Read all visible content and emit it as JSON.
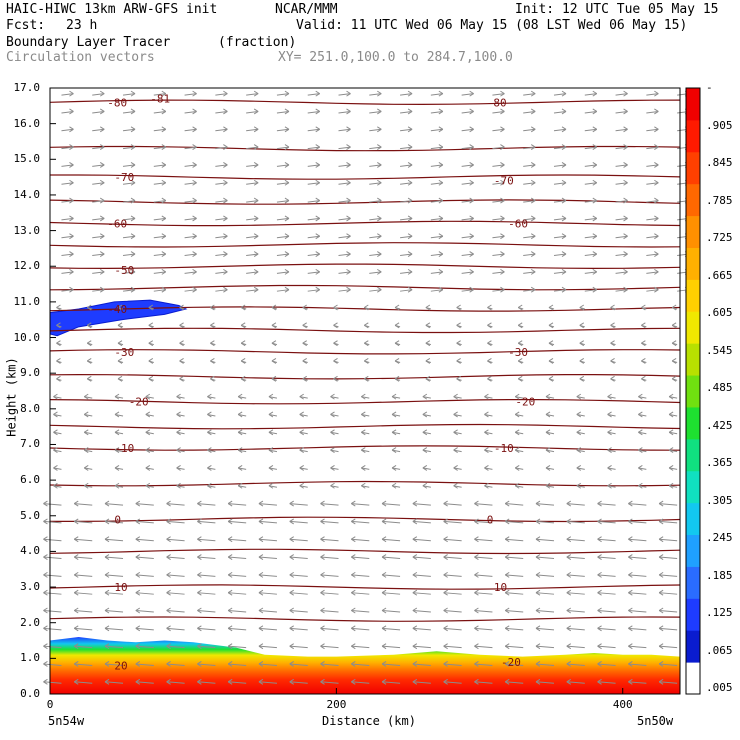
{
  "header": {
    "line1_left": "HAIC-HIWC 13km ARW-GFS init",
    "line1_mid": "NCAR/MMM",
    "line1_right": "Init: 12 UTC Tue 05 May 15",
    "fcst_label": "Fcst:",
    "fcst_value": "23 h",
    "valid": "Valid: 11 UTC Wed 06 May 15 (08 LST Wed 06 May 15)",
    "field_name": "Boundary Layer Tracer",
    "field_units": "(fraction)",
    "vector_label": "Circulation vectors",
    "xy_label": "XY= 251.0,100.0 to 284.7,100.0"
  },
  "chart_data": {
    "type": "heatmap",
    "ylabel": "Height (km)",
    "xlabel": "Distance (km)",
    "ylim": [
      0,
      17
    ],
    "xlim": [
      0,
      440
    ],
    "yticks": [
      "0.0",
      "1.0",
      "2.0",
      "3.0",
      "4.0",
      "5.0",
      "6.0",
      "7.0",
      "8.0",
      "9.0",
      "10.0",
      "11.0",
      "12.0",
      "13.0",
      "14.0",
      "15.0",
      "16.0",
      "17.0"
    ],
    "xticks": [
      "0",
      "200",
      "400"
    ],
    "x_end_labels": [
      "5n54w",
      "5n50w"
    ],
    "colorbar_ticks": [
      ".005",
      ".065",
      ".125",
      ".185",
      ".245",
      ".305",
      ".365",
      ".425",
      ".485",
      ".545",
      ".605",
      ".665",
      ".725",
      ".785",
      ".845",
      ".905",
      "-"
    ],
    "colorbar_colors": [
      "#ffffff",
      "#0a1ccf",
      "#1e3cff",
      "#2a6cff",
      "#1fa0ff",
      "#12c8f0",
      "#10e0c0",
      "#10e080",
      "#1ee030",
      "#70e010",
      "#b8e000",
      "#f0e800",
      "#ffd000",
      "#ffb000",
      "#ff9000",
      "#ff6800",
      "#ff4000",
      "#ff1a00",
      "#f00000"
    ],
    "contour_labels": [
      {
        "text": "-81",
        "x": 70,
        "y": 16.7
      },
      {
        "text": "-80",
        "x": 40,
        "y": 16.6
      },
      {
        "text": "-80",
        "x": 305,
        "y": 16.6
      },
      {
        "text": "-70",
        "x": 45,
        "y": 14.5
      },
      {
        "text": "-70",
        "x": 310,
        "y": 14.4
      },
      {
        "text": "-60",
        "x": 40,
        "y": 13.2
      },
      {
        "text": "-60",
        "x": 320,
        "y": 13.2
      },
      {
        "text": "-50",
        "x": 45,
        "y": 11.9
      },
      {
        "text": "-40",
        "x": 40,
        "y": 10.8
      },
      {
        "text": "-30",
        "x": 45,
        "y": 9.6
      },
      {
        "text": "-30",
        "x": 320,
        "y": 9.6
      },
      {
        "text": "-20",
        "x": 55,
        "y": 8.2
      },
      {
        "text": "-20",
        "x": 325,
        "y": 8.2
      },
      {
        "text": "-10",
        "x": 45,
        "y": 6.9
      },
      {
        "text": "-10",
        "x": 310,
        "y": 6.9
      },
      {
        "text": "0",
        "x": 45,
        "y": 4.9
      },
      {
        "text": "0",
        "x": 305,
        "y": 4.9
      },
      {
        "text": "10",
        "x": 45,
        "y": 3.0
      },
      {
        "text": "10",
        "x": 310,
        "y": 3.0
      },
      {
        "text": "20",
        "x": 45,
        "y": 0.8
      },
      {
        "text": "-20",
        "x": 315,
        "y": 0.9
      }
    ],
    "contour_levels_km": [
      16.6,
      15.3,
      14.5,
      13.8,
      13.2,
      12.6,
      12.0,
      11.4,
      10.8,
      10.2,
      9.6,
      8.9,
      8.2,
      7.5,
      6.9,
      5.9,
      4.9,
      4.0,
      3.0,
      2.1
    ]
  },
  "colors": {
    "contour": "#7a1010",
    "vector": "#8c8c8c"
  }
}
